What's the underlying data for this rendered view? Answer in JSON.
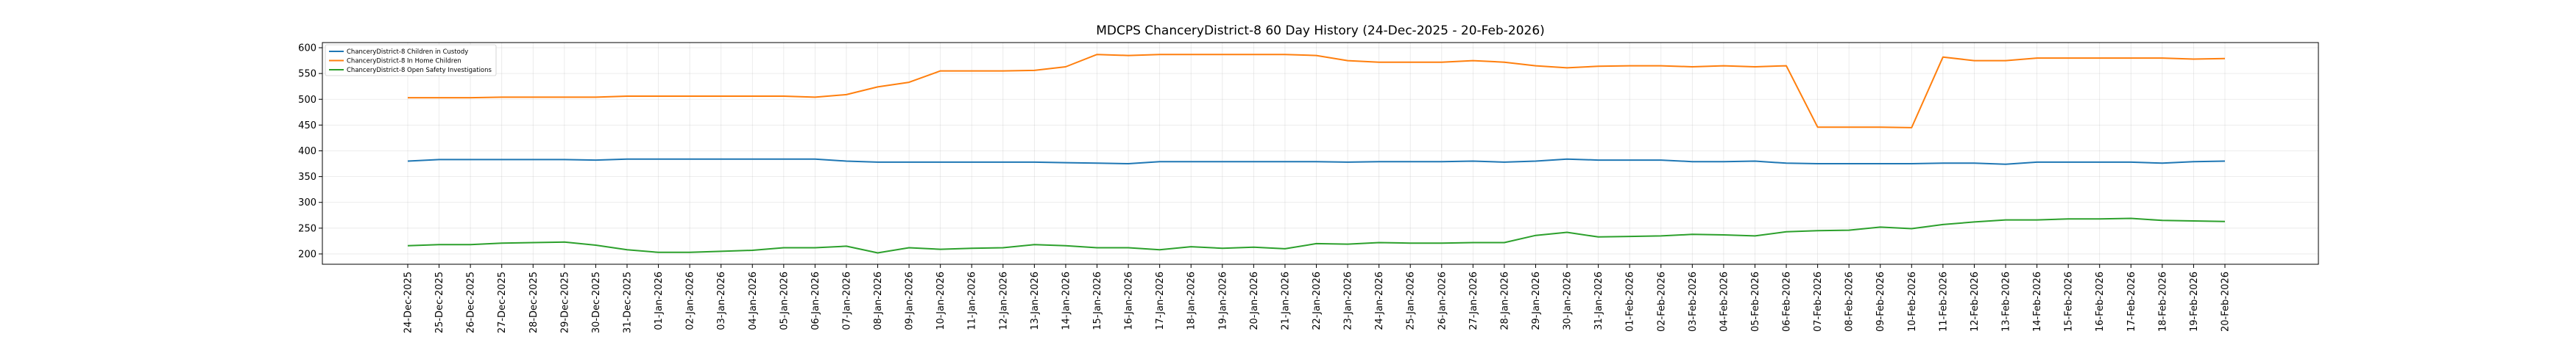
{
  "chart_data": {
    "type": "line",
    "title": "MDCPS ChanceryDistrict-8 60 Day History (24-Dec-2025 - 20-Feb-2026)",
    "xlabel": "",
    "ylabel": "",
    "ylim": [
      180,
      610
    ],
    "yticks": [
      200,
      250,
      300,
      350,
      400,
      450,
      500,
      550,
      600
    ],
    "grid": true,
    "legend_position": "upper-left",
    "categories": [
      "24-Dec-2025",
      "25-Dec-2025",
      "26-Dec-2025",
      "27-Dec-2025",
      "28-Dec-2025",
      "29-Dec-2025",
      "30-Dec-2025",
      "31-Dec-2025",
      "01-Jan-2026",
      "02-Jan-2026",
      "03-Jan-2026",
      "04-Jan-2026",
      "05-Jan-2026",
      "06-Jan-2026",
      "07-Jan-2026",
      "08-Jan-2026",
      "09-Jan-2026",
      "10-Jan-2026",
      "11-Jan-2026",
      "12-Jan-2026",
      "13-Jan-2026",
      "14-Jan-2026",
      "15-Jan-2026",
      "16-Jan-2026",
      "17-Jan-2026",
      "18-Jan-2026",
      "19-Jan-2026",
      "20-Jan-2026",
      "21-Jan-2026",
      "22-Jan-2026",
      "23-Jan-2026",
      "24-Jan-2026",
      "25-Jan-2026",
      "26-Jan-2026",
      "27-Jan-2026",
      "28-Jan-2026",
      "29-Jan-2026",
      "30-Jan-2026",
      "31-Jan-2026",
      "01-Feb-2026",
      "02-Feb-2026",
      "03-Feb-2026",
      "04-Feb-2026",
      "05-Feb-2026",
      "06-Feb-2026",
      "07-Feb-2026",
      "08-Feb-2026",
      "09-Feb-2026",
      "10-Feb-2026",
      "11-Feb-2026",
      "12-Feb-2026",
      "13-Feb-2026",
      "14-Feb-2026",
      "15-Feb-2026",
      "16-Feb-2026",
      "17-Feb-2026",
      "18-Feb-2026",
      "19-Feb-2026",
      "20-Feb-2026"
    ],
    "series": [
      {
        "name": "ChanceryDistrict-8 Children in Custody",
        "color": "#1f77b4",
        "values": [
          380,
          383,
          383,
          383,
          383,
          383,
          382,
          384,
          384,
          384,
          384,
          384,
          384,
          384,
          380,
          378,
          378,
          378,
          378,
          378,
          378,
          377,
          376,
          375,
          379,
          379,
          379,
          379,
          379,
          379,
          378,
          379,
          379,
          379,
          380,
          378,
          380,
          384,
          382,
          382,
          382,
          379,
          379,
          380,
          376,
          375,
          375,
          375,
          375,
          376,
          376,
          374,
          378,
          378,
          378,
          378,
          376,
          379,
          380
        ]
      },
      {
        "name": "ChanceryDistrict-8 In Home Children",
        "color": "#ff7f0e",
        "values": [
          503,
          503,
          503,
          504,
          504,
          504,
          504,
          506,
          506,
          506,
          506,
          506,
          506,
          504,
          509,
          524,
          533,
          555,
          555,
          555,
          556,
          563,
          587,
          585,
          587,
          587,
          587,
          587,
          587,
          585,
          575,
          572,
          572,
          572,
          575,
          572,
          565,
          561,
          564,
          565,
          565,
          563,
          565,
          563,
          565,
          446,
          446,
          446,
          445,
          582,
          575,
          575,
          580,
          580,
          580,
          580,
          580,
          578,
          579
        ]
      },
      {
        "name": "ChanceryDistrict-8 Open Safety Investigations",
        "color": "#2ca02c",
        "values": [
          216,
          218,
          218,
          221,
          222,
          223,
          217,
          208,
          203,
          203,
          205,
          207,
          212,
          212,
          215,
          202,
          212,
          209,
          211,
          212,
          218,
          216,
          212,
          212,
          208,
          214,
          211,
          213,
          210,
          220,
          219,
          222,
          221,
          221,
          222,
          222,
          236,
          242,
          233,
          234,
          235,
          238,
          237,
          235,
          243,
          245,
          246,
          252,
          249,
          257,
          262,
          266,
          266,
          268,
          268,
          269,
          265,
          264,
          263
        ]
      }
    ]
  }
}
